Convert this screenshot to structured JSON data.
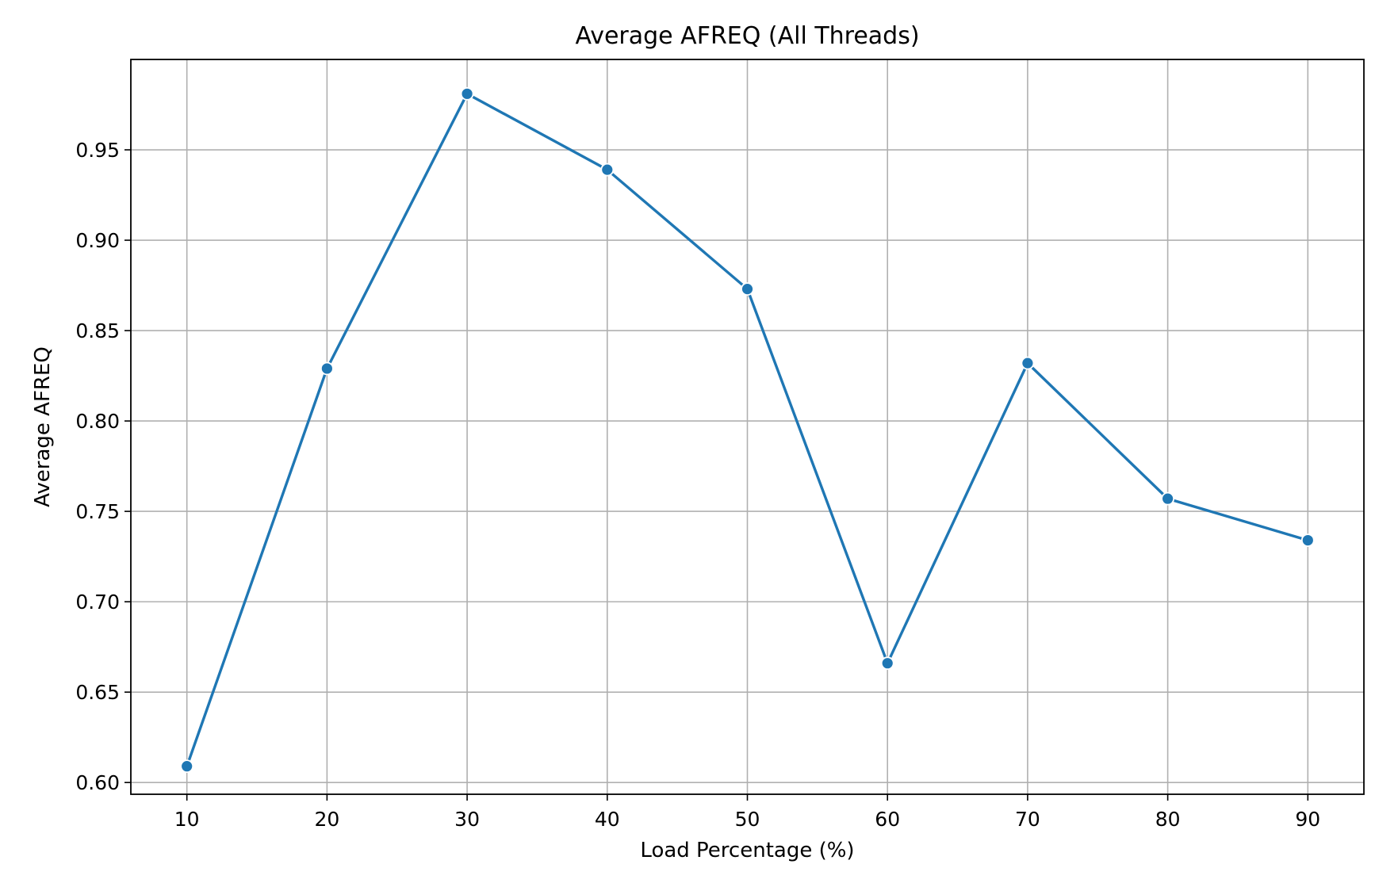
{
  "chart_data": {
    "type": "line",
    "title": "Average AFREQ (All Threads)",
    "xlabel": "Load Percentage (%)",
    "ylabel": "Average AFREQ",
    "x": [
      10,
      20,
      30,
      40,
      50,
      60,
      70,
      80,
      90
    ],
    "x_ticks": [
      "10",
      "20",
      "30",
      "40",
      "50",
      "60",
      "70",
      "80",
      "90"
    ],
    "y_ticks": [
      "0.60",
      "0.65",
      "0.70",
      "0.75",
      "0.80",
      "0.85",
      "0.90",
      "0.95"
    ],
    "xlim": [
      6,
      94
    ],
    "ylim": [
      0.5935,
      1.0
    ],
    "grid": true,
    "series": [
      {
        "values": [
          0.609,
          0.829,
          0.981,
          0.939,
          0.873,
          0.666,
          0.832,
          0.757,
          0.734
        ],
        "color": "#1f77b4",
        "marker": "circle"
      }
    ]
  }
}
